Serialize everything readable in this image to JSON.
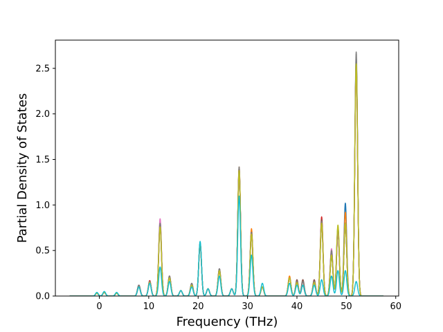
{
  "chart_data": {
    "type": "line",
    "xlabel": "Frequency (THz)",
    "ylabel": "Partial Density of States",
    "xlim": [
      -8.9,
      60.6
    ],
    "ylim": [
      0.0,
      2.81
    ],
    "x_ticks": [
      0,
      10,
      20,
      30,
      40,
      50,
      60
    ],
    "y_ticks": [
      0.0,
      0.5,
      1.0,
      1.5,
      2.0,
      2.5
    ],
    "x_tick_labels": [
      "0",
      "10",
      "20",
      "30",
      "40",
      "50",
      "60"
    ],
    "y_tick_labels": [
      "0.0",
      "0.5",
      "1.0",
      "1.5",
      "2.0",
      "2.5"
    ],
    "x_range": [
      -6.0,
      57.5
    ],
    "grid": false,
    "legend": "none",
    "series_colors": [
      "#1f77b4",
      "#ff7f0e",
      "#2ca02c",
      "#d62728",
      "#9467bd",
      "#8c564b",
      "#e377c2",
      "#7f7f7f",
      "#bcbd22",
      "#17becf"
    ],
    "series": [
      {
        "peaks": [
          [
            -0.5,
            0.03
          ],
          [
            1.0,
            0.04
          ],
          [
            3.5,
            0.03
          ],
          [
            8.0,
            0.12
          ],
          [
            10.2,
            0.15
          ],
          [
            12.3,
            0.8
          ],
          [
            14.2,
            0.2
          ],
          [
            16.5,
            0.06
          ],
          [
            18.7,
            0.12
          ],
          [
            20.4,
            0.58
          ],
          [
            22.0,
            0.08
          ],
          [
            24.3,
            0.28
          ],
          [
            26.8,
            0.08
          ],
          [
            28.3,
            1.38
          ],
          [
            30.8,
            0.68
          ],
          [
            33.0,
            0.1
          ],
          [
            38.5,
            0.2
          ],
          [
            40.0,
            0.15
          ],
          [
            41.2,
            0.12
          ],
          [
            43.5,
            0.15
          ],
          [
            45.0,
            0.8
          ],
          [
            47.0,
            0.45
          ],
          [
            48.3,
            0.7
          ],
          [
            49.8,
            1.02
          ],
          [
            52.0,
            2.62
          ]
        ]
      },
      {
        "peaks": [
          [
            -0.5,
            0.03
          ],
          [
            1.0,
            0.04
          ],
          [
            3.5,
            0.03
          ],
          [
            8.0,
            0.1
          ],
          [
            10.2,
            0.16
          ],
          [
            12.3,
            0.78
          ],
          [
            14.2,
            0.2
          ],
          [
            16.5,
            0.06
          ],
          [
            18.7,
            0.12
          ],
          [
            20.4,
            0.58
          ],
          [
            22.0,
            0.08
          ],
          [
            24.3,
            0.28
          ],
          [
            26.8,
            0.08
          ],
          [
            28.3,
            1.42
          ],
          [
            30.8,
            0.74
          ],
          [
            33.0,
            0.1
          ],
          [
            38.5,
            0.22
          ],
          [
            40.0,
            0.15
          ],
          [
            41.2,
            0.12
          ],
          [
            43.5,
            0.15
          ],
          [
            45.0,
            0.82
          ],
          [
            47.0,
            0.45
          ],
          [
            48.3,
            0.72
          ],
          [
            49.8,
            0.92
          ],
          [
            52.0,
            2.58
          ]
        ]
      },
      {
        "peaks": [
          [
            -0.5,
            0.03
          ],
          [
            1.0,
            0.04
          ],
          [
            3.5,
            0.03
          ],
          [
            8.0,
            0.1
          ],
          [
            10.2,
            0.15
          ],
          [
            12.3,
            0.82
          ],
          [
            14.2,
            0.2
          ],
          [
            16.5,
            0.06
          ],
          [
            18.7,
            0.12
          ],
          [
            20.4,
            0.58
          ],
          [
            22.0,
            0.08
          ],
          [
            24.3,
            0.28
          ],
          [
            26.8,
            0.08
          ],
          [
            28.3,
            1.38
          ],
          [
            30.8,
            0.7
          ],
          [
            33.0,
            0.1
          ],
          [
            38.5,
            0.2
          ],
          [
            40.0,
            0.15
          ],
          [
            41.2,
            0.12
          ],
          [
            43.5,
            0.15
          ],
          [
            45.0,
            0.8
          ],
          [
            47.0,
            0.45
          ],
          [
            48.3,
            0.76
          ],
          [
            49.8,
            0.8
          ],
          [
            52.0,
            2.55
          ]
        ]
      },
      {
        "peaks": [
          [
            -0.5,
            0.03
          ],
          [
            1.0,
            0.04
          ],
          [
            3.5,
            0.03
          ],
          [
            8.0,
            0.12
          ],
          [
            10.2,
            0.17
          ],
          [
            12.3,
            0.8
          ],
          [
            14.2,
            0.22
          ],
          [
            16.5,
            0.06
          ],
          [
            18.7,
            0.12
          ],
          [
            20.4,
            0.58
          ],
          [
            22.0,
            0.08
          ],
          [
            24.3,
            0.28
          ],
          [
            26.8,
            0.08
          ],
          [
            28.3,
            1.4
          ],
          [
            30.8,
            0.7
          ],
          [
            33.0,
            0.1
          ],
          [
            38.5,
            0.2
          ],
          [
            40.0,
            0.15
          ],
          [
            41.2,
            0.16
          ],
          [
            43.5,
            0.16
          ],
          [
            45.0,
            0.87
          ],
          [
            47.0,
            0.48
          ],
          [
            48.3,
            0.7
          ],
          [
            49.8,
            0.8
          ],
          [
            52.0,
            2.55
          ]
        ]
      },
      {
        "peaks": [
          [
            -0.5,
            0.03
          ],
          [
            1.0,
            0.04
          ],
          [
            3.5,
            0.03
          ],
          [
            8.0,
            0.1
          ],
          [
            10.2,
            0.15
          ],
          [
            12.3,
            0.75
          ],
          [
            14.2,
            0.2
          ],
          [
            16.5,
            0.06
          ],
          [
            18.7,
            0.12
          ],
          [
            20.4,
            0.58
          ],
          [
            22.0,
            0.08
          ],
          [
            24.3,
            0.3
          ],
          [
            26.8,
            0.08
          ],
          [
            28.3,
            1.35
          ],
          [
            30.8,
            0.68
          ],
          [
            33.0,
            0.1
          ],
          [
            38.5,
            0.2
          ],
          [
            40.0,
            0.15
          ],
          [
            41.2,
            0.12
          ],
          [
            43.5,
            0.15
          ],
          [
            45.0,
            0.8
          ],
          [
            47.0,
            0.48
          ],
          [
            48.3,
            0.7
          ],
          [
            49.8,
            0.8
          ],
          [
            52.0,
            2.55
          ]
        ]
      },
      {
        "peaks": [
          [
            -0.5,
            0.03
          ],
          [
            1.0,
            0.04
          ],
          [
            3.5,
            0.03
          ],
          [
            8.0,
            0.12
          ],
          [
            10.2,
            0.16
          ],
          [
            12.3,
            0.78
          ],
          [
            14.2,
            0.22
          ],
          [
            16.5,
            0.06
          ],
          [
            18.7,
            0.14
          ],
          [
            20.4,
            0.56
          ],
          [
            22.0,
            0.08
          ],
          [
            24.3,
            0.3
          ],
          [
            26.8,
            0.08
          ],
          [
            28.3,
            1.4
          ],
          [
            30.8,
            0.7
          ],
          [
            33.0,
            0.1
          ],
          [
            38.5,
            0.2
          ],
          [
            40.0,
            0.18
          ],
          [
            41.2,
            0.18
          ],
          [
            43.5,
            0.18
          ],
          [
            45.0,
            0.84
          ],
          [
            47.0,
            0.5
          ],
          [
            48.3,
            0.74
          ],
          [
            49.8,
            0.8
          ],
          [
            52.0,
            2.6
          ]
        ]
      },
      {
        "peaks": [
          [
            -0.5,
            0.03
          ],
          [
            1.0,
            0.04
          ],
          [
            3.5,
            0.03
          ],
          [
            8.0,
            0.1
          ],
          [
            10.2,
            0.15
          ],
          [
            12.3,
            0.85
          ],
          [
            14.2,
            0.2
          ],
          [
            16.5,
            0.06
          ],
          [
            18.7,
            0.12
          ],
          [
            20.4,
            0.58
          ],
          [
            22.0,
            0.08
          ],
          [
            24.3,
            0.28
          ],
          [
            26.8,
            0.08
          ],
          [
            28.3,
            1.38
          ],
          [
            30.8,
            0.68
          ],
          [
            33.0,
            0.1
          ],
          [
            38.5,
            0.2
          ],
          [
            40.0,
            0.15
          ],
          [
            41.2,
            0.12
          ],
          [
            43.5,
            0.15
          ],
          [
            45.0,
            0.8
          ],
          [
            47.0,
            0.52
          ],
          [
            48.3,
            0.7
          ],
          [
            49.8,
            0.8
          ],
          [
            52.0,
            2.55
          ]
        ]
      },
      {
        "peaks": [
          [
            -0.5,
            0.03
          ],
          [
            1.0,
            0.04
          ],
          [
            3.5,
            0.03
          ],
          [
            8.0,
            0.12
          ],
          [
            10.2,
            0.16
          ],
          [
            12.3,
            0.8
          ],
          [
            14.2,
            0.22
          ],
          [
            16.5,
            0.06
          ],
          [
            18.7,
            0.14
          ],
          [
            20.4,
            0.58
          ],
          [
            22.0,
            0.08
          ],
          [
            24.3,
            0.3
          ],
          [
            26.8,
            0.08
          ],
          [
            28.3,
            1.42
          ],
          [
            30.8,
            0.7
          ],
          [
            33.0,
            0.1
          ],
          [
            38.5,
            0.2
          ],
          [
            40.0,
            0.16
          ],
          [
            41.2,
            0.16
          ],
          [
            43.5,
            0.16
          ],
          [
            45.0,
            0.82
          ],
          [
            47.0,
            0.5
          ],
          [
            48.3,
            0.74
          ],
          [
            49.8,
            0.8
          ],
          [
            52.0,
            2.68
          ]
        ]
      },
      {
        "peaks": [
          [
            -0.5,
            0.03
          ],
          [
            1.0,
            0.04
          ],
          [
            3.5,
            0.03
          ],
          [
            8.0,
            0.1
          ],
          [
            10.2,
            0.15
          ],
          [
            12.3,
            0.76
          ],
          [
            14.2,
            0.2
          ],
          [
            16.5,
            0.06
          ],
          [
            18.7,
            0.12
          ],
          [
            20.4,
            0.58
          ],
          [
            22.0,
            0.08
          ],
          [
            24.3,
            0.28
          ],
          [
            26.8,
            0.08
          ],
          [
            28.3,
            1.38
          ],
          [
            30.8,
            0.68
          ],
          [
            33.0,
            0.1
          ],
          [
            38.5,
            0.2
          ],
          [
            40.0,
            0.15
          ],
          [
            41.2,
            0.12
          ],
          [
            43.5,
            0.15
          ],
          [
            45.0,
            0.8
          ],
          [
            47.0,
            0.45
          ],
          [
            48.3,
            0.78
          ],
          [
            49.8,
            0.8
          ],
          [
            52.0,
            2.55
          ]
        ]
      },
      {
        "peaks": [
          [
            -0.5,
            0.04
          ],
          [
            1.0,
            0.05
          ],
          [
            3.5,
            0.04
          ],
          [
            8.0,
            0.1
          ],
          [
            10.2,
            0.14
          ],
          [
            12.3,
            0.32
          ],
          [
            14.2,
            0.16
          ],
          [
            16.5,
            0.06
          ],
          [
            18.7,
            0.1
          ],
          [
            20.4,
            0.6
          ],
          [
            22.0,
            0.08
          ],
          [
            24.3,
            0.22
          ],
          [
            26.8,
            0.08
          ],
          [
            28.3,
            1.1
          ],
          [
            30.8,
            0.45
          ],
          [
            33.0,
            0.14
          ],
          [
            38.5,
            0.14
          ],
          [
            40.0,
            0.12
          ],
          [
            41.2,
            0.12
          ],
          [
            43.5,
            0.12
          ],
          [
            45.0,
            0.18
          ],
          [
            47.0,
            0.22
          ],
          [
            48.3,
            0.28
          ],
          [
            49.8,
            0.28
          ],
          [
            52.0,
            0.16
          ]
        ]
      }
    ]
  }
}
